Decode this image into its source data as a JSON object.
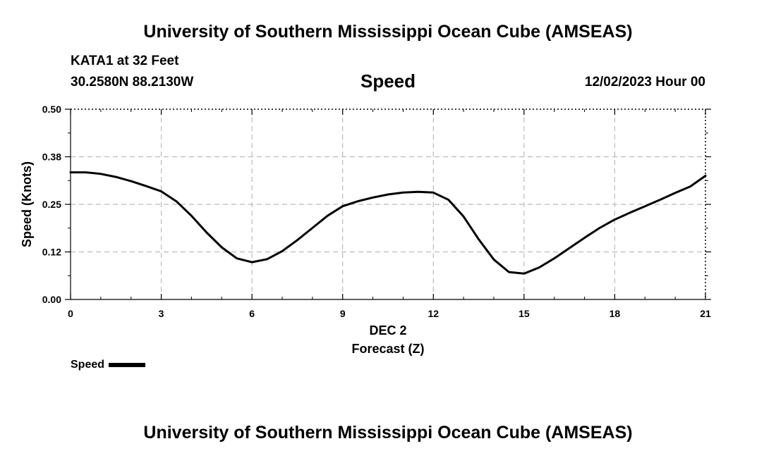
{
  "header": {
    "title": "University of Southern Mississippi Ocean Cube (AMSEAS)",
    "station": "KATA1 at 32 Feet",
    "coords": "30.2580N  88.2130W",
    "variable": "Speed",
    "datetime": "12/02/2023 Hour 00"
  },
  "footer": {
    "title": "University of Southern Mississippi Ocean Cube (AMSEAS)"
  },
  "legend": {
    "label": "Speed",
    "color": "#000000"
  },
  "chart_data": {
    "type": "line",
    "title": "Speed",
    "xlabel": "Forecast (Z)",
    "xlabel_date": "DEC 2",
    "ylabel": "Speed (Knots)",
    "xlim": [
      0,
      21
    ],
    "ylim": [
      0,
      0.5
    ],
    "xticks": [
      0,
      3,
      6,
      9,
      12,
      15,
      18,
      21
    ],
    "xtick_labels": [
      "0",
      "3",
      "6",
      "9",
      "12",
      "15",
      "18",
      "21"
    ],
    "yticks": [
      0,
      0.125,
      0.25,
      0.375,
      0.5
    ],
    "ytick_labels": [
      "0.00",
      "0.12",
      "0.25",
      "0.38",
      "0.50"
    ],
    "grid": true,
    "series": [
      {
        "name": "Speed",
        "color": "#000000",
        "x": [
          0,
          0.5,
          1,
          1.5,
          2,
          2.5,
          3,
          3.5,
          4,
          4.5,
          5,
          5.5,
          6,
          6.5,
          7,
          7.5,
          8,
          8.5,
          9,
          9.5,
          10,
          10.5,
          11,
          11.5,
          12,
          12.5,
          13,
          13.5,
          14,
          14.5,
          15,
          15.5,
          16,
          16.5,
          17,
          17.5,
          18,
          18.5,
          19,
          19.5,
          20,
          20.5,
          21
        ],
        "values": [
          0.334,
          0.334,
          0.33,
          0.322,
          0.311,
          0.298,
          0.284,
          0.258,
          0.22,
          0.176,
          0.137,
          0.108,
          0.098,
          0.106,
          0.127,
          0.156,
          0.188,
          0.22,
          0.245,
          0.258,
          0.268,
          0.276,
          0.281,
          0.283,
          0.281,
          0.262,
          0.218,
          0.158,
          0.105,
          0.072,
          0.068,
          0.084,
          0.108,
          0.135,
          0.162,
          0.188,
          0.21,
          0.228,
          0.245,
          0.262,
          0.28,
          0.297,
          0.325
        ]
      }
    ]
  }
}
